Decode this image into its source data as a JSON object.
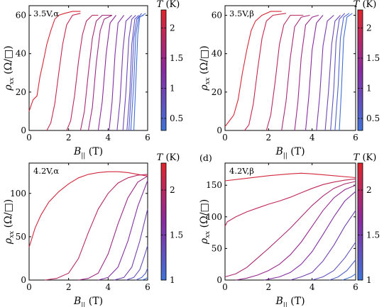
{
  "figure": {
    "colorbar_title": "T (K)",
    "colormap_low": "#3f73d8",
    "colormap_mid": "#8a2aa0",
    "colormap_high": "#e0262a"
  },
  "chart_data": [
    {
      "type": "line",
      "panel_label": "",
      "annotation": "3.5V,α",
      "xlabel": "B|| (T)",
      "ylabel": "ρxx (Ω/□)",
      "xlim": [
        0,
        6
      ],
      "ylim": [
        0,
        65
      ],
      "xticks": [
        "0",
        "2",
        "4",
        "6"
      ],
      "yticks": [
        "0",
        "20",
        "40",
        "60"
      ],
      "colorbar": {
        "ticks": [
          "0.5",
          "1",
          "1.5",
          "2"
        ],
        "range": [
          0.3,
          2.3
        ]
      },
      "series": [
        {
          "temperature": 2.2,
          "x": [
            0,
            0.2,
            0.4,
            0.55,
            0.7,
            0.9,
            1.1,
            1.3,
            1.5,
            1.8,
            2.2,
            2.6
          ],
          "y": [
            10,
            16,
            18,
            28,
            35,
            45,
            52,
            58,
            60,
            61,
            62,
            62
          ]
        },
        {
          "temperature": 2.0,
          "x": [
            0.9,
            1.1,
            1.3,
            1.5,
            1.7,
            1.9,
            2.2,
            2.6
          ],
          "y": [
            0,
            4,
            14,
            30,
            45,
            55,
            60,
            61
          ]
        },
        {
          "temperature": 1.85,
          "x": [
            1.9,
            2.1,
            2.3,
            2.5,
            2.7,
            2.9,
            3.2,
            3.5
          ],
          "y": [
            0,
            5,
            18,
            36,
            50,
            57,
            60,
            60
          ]
        },
        {
          "temperature": 1.65,
          "x": [
            2.6,
            2.8,
            3.0,
            3.2,
            3.4,
            3.7,
            4.2
          ],
          "y": [
            0,
            10,
            30,
            48,
            57,
            60,
            60
          ]
        },
        {
          "temperature": 1.5,
          "x": [
            3.0,
            3.2,
            3.4,
            3.6,
            3.8,
            4.2
          ],
          "y": [
            0,
            12,
            35,
            52,
            58,
            60
          ]
        },
        {
          "temperature": 1.35,
          "x": [
            3.5,
            3.7,
            3.9,
            4.1,
            4.4
          ],
          "y": [
            0,
            15,
            40,
            56,
            60
          ]
        },
        {
          "temperature": 1.2,
          "x": [
            4.05,
            4.2,
            4.35,
            4.5,
            4.8
          ],
          "y": [
            0,
            15,
            40,
            56,
            60
          ]
        },
        {
          "temperature": 1.05,
          "x": [
            4.45,
            4.6,
            4.75,
            4.9,
            5.2
          ],
          "y": [
            0,
            15,
            42,
            57,
            60
          ]
        },
        {
          "temperature": 0.9,
          "x": [
            4.75,
            4.9,
            5.05,
            5.2,
            5.4
          ],
          "y": [
            0,
            20,
            48,
            58,
            60
          ]
        },
        {
          "temperature": 0.75,
          "x": [
            4.95,
            5.1,
            5.2,
            5.35,
            5.55
          ],
          "y": [
            0,
            20,
            45,
            58,
            60
          ]
        },
        {
          "temperature": 0.6,
          "x": [
            5.05,
            5.2,
            5.3,
            5.45,
            5.7
          ],
          "y": [
            0,
            25,
            48,
            58,
            61
          ]
        },
        {
          "temperature": 0.45,
          "x": [
            5.15,
            5.3,
            5.4,
            5.55,
            5.8
          ],
          "y": [
            0,
            25,
            50,
            59,
            60
          ]
        },
        {
          "temperature": 0.35,
          "x": [
            5.3,
            5.4,
            5.5,
            5.6,
            5.9
          ],
          "y": [
            0,
            25,
            50,
            59,
            61
          ]
        }
      ]
    },
    {
      "type": "line",
      "panel_label": "",
      "annotation": "3.5V,β",
      "xlabel": "B|| (T)",
      "ylabel": "ρxx (Ω/□)",
      "xlim": [
        0,
        6
      ],
      "ylim": [
        0,
        65
      ],
      "xticks": [
        "0",
        "2",
        "4",
        "6"
      ],
      "yticks": [
        "0",
        "20",
        "40",
        "60"
      ],
      "colorbar": {
        "ticks": [
          "0.5",
          "1",
          "1.5",
          "2"
        ],
        "range": [
          0.3,
          2.3
        ]
      },
      "series": [
        {
          "temperature": 2.2,
          "x": [
            0,
            0.2,
            0.4,
            0.6,
            0.8,
            1.0,
            1.2,
            1.4,
            1.7,
            2.1,
            2.6
          ],
          "y": [
            2,
            5,
            8,
            16,
            30,
            42,
            52,
            57,
            60,
            62,
            62
          ]
        },
        {
          "temperature": 2.0,
          "x": [
            0.9,
            1.1,
            1.3,
            1.5,
            1.7,
            1.9,
            2.2,
            2.8
          ],
          "y": [
            0,
            3,
            14,
            32,
            48,
            57,
            60,
            61
          ]
        },
        {
          "temperature": 1.85,
          "x": [
            1.9,
            2.1,
            2.3,
            2.5,
            2.7,
            3.0,
            3.6
          ],
          "y": [
            0,
            8,
            25,
            45,
            55,
            60,
            60
          ]
        },
        {
          "temperature": 1.65,
          "x": [
            2.6,
            2.8,
            3.0,
            3.2,
            3.5,
            3.9
          ],
          "y": [
            0,
            15,
            38,
            54,
            59,
            60
          ]
        },
        {
          "temperature": 1.5,
          "x": [
            3.2,
            3.35,
            3.5,
            3.7,
            4.0,
            4.3
          ],
          "y": [
            0,
            15,
            38,
            55,
            59,
            60
          ]
        },
        {
          "temperature": 1.3,
          "x": [
            3.7,
            3.85,
            4.0,
            4.2,
            4.5
          ],
          "y": [
            0,
            18,
            42,
            56,
            60
          ]
        },
        {
          "temperature": 1.1,
          "x": [
            4.2,
            4.35,
            4.5,
            4.7,
            5.0
          ],
          "y": [
            0,
            18,
            44,
            57,
            60
          ]
        },
        {
          "temperature": 0.9,
          "x": [
            4.6,
            4.75,
            4.9,
            5.05,
            5.3
          ],
          "y": [
            0,
            20,
            45,
            57,
            60
          ]
        },
        {
          "temperature": 0.7,
          "x": [
            4.85,
            5.0,
            5.1,
            5.25,
            5.5
          ],
          "y": [
            0,
            22,
            46,
            58,
            61
          ]
        },
        {
          "temperature": 0.5,
          "x": [
            5.05,
            5.2,
            5.3,
            5.45,
            5.7
          ],
          "y": [
            0,
            24,
            48,
            59,
            61
          ]
        },
        {
          "temperature": 0.35,
          "x": [
            5.25,
            5.35,
            5.45,
            5.6,
            5.85
          ],
          "y": [
            0,
            22,
            48,
            59,
            61
          ]
        }
      ]
    },
    {
      "type": "line",
      "panel_label": "",
      "annotation": "4.2V,α",
      "xlabel": "B|| (T)",
      "ylabel": "ρxx (Ω/□)",
      "xlim": [
        0,
        6
      ],
      "ylim": [
        0,
        135
      ],
      "xticks": [
        "0",
        "2",
        "4",
        "6"
      ],
      "yticks": [
        "0",
        "50",
        "100"
      ],
      "colorbar": {
        "ticks": [
          "1",
          "1.5",
          "2"
        ],
        "range": [
          1,
          2.3
        ]
      },
      "series": [
        {
          "temperature": 2.2,
          "x": [
            0,
            0.1,
            0.3,
            0.6,
            1.0,
            1.5,
            2.0,
            2.5,
            3.0,
            3.5,
            4.0,
            4.5,
            5.0,
            5.5,
            6.0
          ],
          "y": [
            38,
            45,
            60,
            75,
            90,
            102,
            111,
            118,
            122,
            124,
            125,
            125,
            124,
            122,
            120
          ]
        },
        {
          "temperature": 2.0,
          "x": [
            0.8,
            1.4,
            2.0,
            2.5,
            3.0,
            3.5,
            4.0,
            4.5,
            5.0,
            5.5,
            6.0
          ],
          "y": [
            0,
            2,
            8,
            25,
            55,
            82,
            100,
            112,
            118,
            121,
            122
          ]
        },
        {
          "temperature": 1.8,
          "x": [
            2.5,
            3.0,
            3.5,
            4.0,
            4.5,
            5.0,
            5.5,
            6.0
          ],
          "y": [
            0,
            2,
            8,
            30,
            65,
            95,
            113,
            120
          ]
        },
        {
          "temperature": 1.6,
          "x": [
            3.5,
            4.0,
            4.5,
            5.0,
            5.5,
            6.0
          ],
          "y": [
            0,
            3,
            15,
            45,
            85,
            115
          ]
        },
        {
          "temperature": 1.45,
          "x": [
            4.3,
            4.8,
            5.2,
            5.6,
            6.0
          ],
          "y": [
            0,
            3,
            15,
            45,
            82
          ]
        },
        {
          "temperature": 1.3,
          "x": [
            4.9,
            5.3,
            5.6,
            5.8,
            6.0
          ],
          "y": [
            0,
            3,
            12,
            25,
            40
          ]
        },
        {
          "temperature": 1.15,
          "x": [
            5.4,
            5.7,
            5.9,
            6.0
          ],
          "y": [
            0,
            3,
            8,
            14
          ]
        },
        {
          "temperature": 1.02,
          "x": [
            5.7,
            5.9,
            6.0
          ],
          "y": [
            0,
            1.5,
            3
          ]
        }
      ]
    },
    {
      "type": "line",
      "panel_label": "(d)",
      "annotation": "4.2V,β",
      "xlabel": "B|| (T)",
      "ylabel": "ρxx (Ω/□)",
      "xlim": [
        0,
        6
      ],
      "ylim": [
        0,
        185
      ],
      "xticks": [
        "0",
        "2",
        "4",
        "6"
      ],
      "yticks": [
        "0",
        "50",
        "100",
        "150"
      ],
      "colorbar": {
        "ticks": [
          "1",
          "1.5",
          "2"
        ],
        "range": [
          1,
          2.3
        ]
      },
      "series": [
        {
          "temperature": 2.2,
          "x": [
            0,
            1,
            2,
            3,
            3.5,
            4,
            5,
            6
          ],
          "y": [
            157,
            161,
            165,
            168,
            169,
            168,
            165,
            162
          ]
        },
        {
          "temperature": 2.05,
          "x": [
            0,
            0.1,
            0.5,
            1,
            1.5,
            2,
            2.5,
            3,
            3.5,
            4,
            4.5,
            5,
            5.5,
            6
          ],
          "y": [
            85,
            92,
            100,
            108,
            114,
            120,
            125,
            131,
            138,
            145,
            151,
            155,
            158,
            160
          ]
        },
        {
          "temperature": 1.9,
          "x": [
            0,
            0.5,
            1,
            1.5,
            2,
            2.5,
            3,
            3.5,
            4,
            4.5,
            5,
            5.5,
            6
          ],
          "y": [
            5,
            10,
            20,
            35,
            50,
            66,
            82,
            100,
            118,
            133,
            145,
            152,
            156
          ]
        },
        {
          "temperature": 1.75,
          "x": [
            0.5,
            1,
            1.5,
            2,
            2.5,
            3,
            3.5,
            4,
            4.5,
            5,
            5.5,
            6
          ],
          "y": [
            0,
            3,
            8,
            15,
            25,
            40,
            60,
            85,
            110,
            130,
            143,
            150
          ]
        },
        {
          "temperature": 1.6,
          "x": [
            1.8,
            2.5,
            3,
            3.5,
            4,
            4.5,
            5,
            5.5,
            6
          ],
          "y": [
            0,
            5,
            12,
            25,
            45,
            72,
            100,
            125,
            140
          ]
        },
        {
          "temperature": 1.45,
          "x": [
            3,
            3.5,
            4,
            4.5,
            5,
            5.5,
            6
          ],
          "y": [
            0,
            5,
            12,
            30,
            55,
            85,
            110
          ]
        },
        {
          "temperature": 1.3,
          "x": [
            4,
            4.5,
            5,
            5.5,
            6
          ],
          "y": [
            0,
            5,
            15,
            35,
            60
          ]
        },
        {
          "temperature": 1.15,
          "x": [
            4.8,
            5.2,
            5.6,
            6
          ],
          "y": [
            0,
            5,
            15,
            32
          ]
        },
        {
          "temperature": 1.02,
          "x": [
            5.4,
            5.8,
            6
          ],
          "y": [
            0,
            5,
            10
          ]
        }
      ]
    }
  ]
}
